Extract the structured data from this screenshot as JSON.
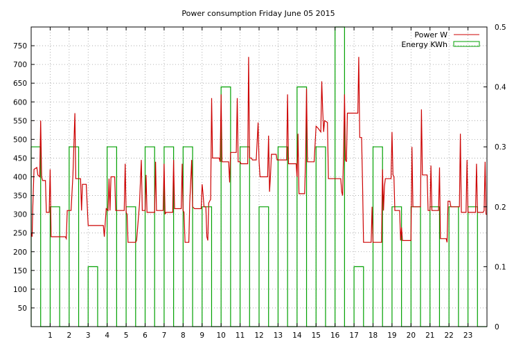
{
  "chart_data": {
    "type": "line",
    "title": "Power consumption Friday June 05 2015",
    "xlabel": "",
    "ylabel": "",
    "x_ticks": [
      "1",
      "2",
      "3",
      "4",
      "5",
      "6",
      "7",
      "8",
      "9",
      "10",
      "11",
      "12",
      "13",
      "14",
      "15",
      "16",
      "17",
      "18",
      "19",
      "20",
      "21",
      "22",
      "23"
    ],
    "xlim": [
      0,
      24
    ],
    "ylim": [
      0,
      800
    ],
    "y_ticks": [
      "50",
      "100",
      "150",
      "200",
      "250",
      "300",
      "350",
      "400",
      "450",
      "500",
      "550",
      "600",
      "650",
      "700",
      "750"
    ],
    "y2lim": [
      0,
      0.5
    ],
    "y2_ticks": [
      "0",
      "0.1",
      "0.2",
      "0.3",
      "0.4",
      "0.5"
    ],
    "grid": true,
    "legend_position": "top-right",
    "colors": {
      "power": "#cc0000",
      "energy": "#00a000"
    },
    "series": [
      {
        "name": "Power W",
        "axis": "left",
        "style": "line",
        "points": [
          [
            0.0,
            250
          ],
          [
            0.05,
            240
          ],
          [
            0.08,
            310
          ],
          [
            0.15,
            420
          ],
          [
            0.3,
            425
          ],
          [
            0.35,
            405
          ],
          [
            0.45,
            400
          ],
          [
            0.5,
            550
          ],
          [
            0.55,
            400
          ],
          [
            0.6,
            390
          ],
          [
            0.75,
            390
          ],
          [
            0.8,
            305
          ],
          [
            0.95,
            305
          ],
          [
            1.0,
            420
          ],
          [
            1.05,
            240
          ],
          [
            1.8,
            240
          ],
          [
            1.85,
            235
          ],
          [
            1.9,
            310
          ],
          [
            2.1,
            310
          ],
          [
            2.2,
            405
          ],
          [
            2.3,
            570
          ],
          [
            2.35,
            395
          ],
          [
            2.6,
            395
          ],
          [
            2.65,
            310
          ],
          [
            2.7,
            380
          ],
          [
            2.9,
            380
          ],
          [
            3.0,
            270
          ],
          [
            3.8,
            270
          ],
          [
            3.85,
            240
          ],
          [
            3.95,
            315
          ],
          [
            4.05,
            310
          ],
          [
            4.1,
            395
          ],
          [
            4.15,
            310
          ],
          [
            4.2,
            400
          ],
          [
            4.4,
            400
          ],
          [
            4.45,
            310
          ],
          [
            4.9,
            310
          ],
          [
            4.95,
            435
          ],
          [
            5.0,
            305
          ],
          [
            5.05,
            300
          ],
          [
            5.1,
            225
          ],
          [
            5.5,
            225
          ],
          [
            5.55,
            230
          ],
          [
            5.7,
            325
          ],
          [
            5.8,
            445
          ],
          [
            5.85,
            310
          ],
          [
            6.0,
            310
          ],
          [
            6.05,
            405
          ],
          [
            6.1,
            305
          ],
          [
            6.5,
            305
          ],
          [
            6.55,
            440
          ],
          [
            6.6,
            310
          ],
          [
            6.95,
            310
          ],
          [
            7.0,
            435
          ],
          [
            7.05,
            300
          ],
          [
            7.1,
            305
          ],
          [
            7.45,
            305
          ],
          [
            7.5,
            445
          ],
          [
            7.55,
            315
          ],
          [
            7.9,
            315
          ],
          [
            7.95,
            435
          ],
          [
            8.0,
            310
          ],
          [
            8.05,
            305
          ],
          [
            8.1,
            225
          ],
          [
            8.3,
            225
          ],
          [
            8.35,
            330
          ],
          [
            8.45,
            445
          ],
          [
            8.5,
            320
          ],
          [
            8.6,
            315
          ],
          [
            8.95,
            315
          ],
          [
            9.0,
            380
          ],
          [
            9.05,
            355
          ],
          [
            9.1,
            320
          ],
          [
            9.2,
            320
          ],
          [
            9.25,
            240
          ],
          [
            9.3,
            230
          ],
          [
            9.35,
            330
          ],
          [
            9.45,
            340
          ],
          [
            9.5,
            610
          ],
          [
            9.55,
            450
          ],
          [
            9.9,
            450
          ],
          [
            9.95,
            440
          ],
          [
            10.0,
            620
          ],
          [
            10.05,
            440
          ],
          [
            10.4,
            440
          ],
          [
            10.45,
            385
          ],
          [
            10.5,
            465
          ],
          [
            10.8,
            465
          ],
          [
            10.85,
            610
          ],
          [
            10.9,
            440
          ],
          [
            11.0,
            440
          ],
          [
            11.05,
            435
          ],
          [
            11.4,
            435
          ],
          [
            11.45,
            720
          ],
          [
            11.5,
            450
          ],
          [
            11.6,
            450
          ],
          [
            11.65,
            445
          ],
          [
            11.85,
            445
          ],
          [
            11.95,
            545
          ],
          [
            12.0,
            440
          ],
          [
            12.05,
            400
          ],
          [
            12.45,
            400
          ],
          [
            12.5,
            510
          ],
          [
            12.55,
            360
          ],
          [
            12.6,
            400
          ],
          [
            12.65,
            460
          ],
          [
            12.9,
            460
          ],
          [
            12.95,
            445
          ],
          [
            13.45,
            445
          ],
          [
            13.5,
            620
          ],
          [
            13.55,
            435
          ],
          [
            13.95,
            435
          ],
          [
            14.0,
            400
          ],
          [
            14.05,
            515
          ],
          [
            14.1,
            355
          ],
          [
            14.4,
            355
          ],
          [
            14.45,
            455
          ],
          [
            14.5,
            635
          ],
          [
            14.55,
            440
          ],
          [
            14.9,
            440
          ],
          [
            15.0,
            535
          ],
          [
            15.1,
            530
          ],
          [
            15.25,
            520
          ],
          [
            15.3,
            655
          ],
          [
            15.35,
            580
          ],
          [
            15.4,
            520
          ],
          [
            15.45,
            550
          ],
          [
            15.6,
            545
          ],
          [
            15.65,
            395
          ],
          [
            16.3,
            395
          ],
          [
            16.35,
            360
          ],
          [
            16.4,
            350
          ],
          [
            16.45,
            465
          ],
          [
            16.5,
            620
          ],
          [
            16.55,
            445
          ],
          [
            16.6,
            440
          ],
          [
            16.65,
            570
          ],
          [
            17.2,
            570
          ],
          [
            17.25,
            720
          ],
          [
            17.3,
            505
          ],
          [
            17.4,
            505
          ],
          [
            17.45,
            380
          ],
          [
            17.5,
            225
          ],
          [
            17.9,
            225
          ],
          [
            17.95,
            320
          ],
          [
            18.0,
            225
          ],
          [
            18.45,
            225
          ],
          [
            18.5,
            420
          ],
          [
            18.55,
            310
          ],
          [
            18.6,
            375
          ],
          [
            18.65,
            395
          ],
          [
            18.95,
            395
          ],
          [
            19.0,
            520
          ],
          [
            19.05,
            405
          ],
          [
            19.1,
            400
          ],
          [
            19.15,
            310
          ],
          [
            19.4,
            310
          ],
          [
            19.45,
            230
          ],
          [
            19.5,
            265
          ],
          [
            19.55,
            230
          ],
          [
            20.0,
            230
          ],
          [
            20.05,
            480
          ],
          [
            20.1,
            320
          ],
          [
            20.5,
            320
          ],
          [
            20.55,
            580
          ],
          [
            20.6,
            405
          ],
          [
            20.85,
            405
          ],
          [
            20.9,
            310
          ],
          [
            21.0,
            310
          ],
          [
            21.05,
            430
          ],
          [
            21.1,
            310
          ],
          [
            21.45,
            310
          ],
          [
            21.5,
            425
          ],
          [
            21.55,
            235
          ],
          [
            21.85,
            235
          ],
          [
            21.9,
            225
          ],
          [
            21.95,
            335
          ],
          [
            22.05,
            335
          ],
          [
            22.1,
            320
          ],
          [
            22.3,
            320
          ],
          [
            22.35,
            320
          ],
          [
            22.55,
            320
          ],
          [
            22.6,
            515
          ],
          [
            22.65,
            305
          ],
          [
            22.9,
            305
          ],
          [
            22.95,
            445
          ],
          [
            23.0,
            305
          ],
          [
            23.4,
            305
          ],
          [
            23.45,
            435
          ],
          [
            23.5,
            305
          ],
          [
            23.8,
            305
          ],
          [
            23.85,
            310
          ],
          [
            23.9,
            440
          ],
          [
            23.95,
            300
          ],
          [
            24.0,
            300
          ]
        ]
      },
      {
        "name": "Energy KWh",
        "axis": "right",
        "style": "step",
        "points": [
          [
            0.0,
            0.3
          ],
          [
            0.5,
            0.0
          ],
          [
            1.0,
            0.2
          ],
          [
            1.5,
            0.0
          ],
          [
            2.0,
            0.3
          ],
          [
            2.5,
            0.0
          ],
          [
            3.0,
            0.1
          ],
          [
            3.5,
            0.0
          ],
          [
            4.0,
            0.3
          ],
          [
            4.5,
            0.0
          ],
          [
            5.0,
            0.2
          ],
          [
            5.5,
            0.0
          ],
          [
            6.0,
            0.3
          ],
          [
            6.5,
            0.0
          ],
          [
            7.0,
            0.3
          ],
          [
            7.5,
            0.0
          ],
          [
            8.0,
            0.3
          ],
          [
            8.5,
            0.0
          ],
          [
            9.0,
            0.2
          ],
          [
            9.5,
            0.0
          ],
          [
            10.0,
            0.4
          ],
          [
            10.5,
            0.0
          ],
          [
            11.0,
            0.3
          ],
          [
            11.5,
            0.0
          ],
          [
            12.0,
            0.2
          ],
          [
            12.5,
            0.0
          ],
          [
            13.0,
            0.3
          ],
          [
            13.5,
            0.0
          ],
          [
            14.0,
            0.4
          ],
          [
            14.5,
            0.0
          ],
          [
            15.0,
            0.3
          ],
          [
            15.5,
            0.0
          ],
          [
            16.0,
            0.5
          ],
          [
            16.5,
            0.0
          ],
          [
            17.0,
            0.1
          ],
          [
            17.5,
            0.0
          ],
          [
            18.0,
            0.3
          ],
          [
            18.5,
            0.0
          ],
          [
            19.0,
            0.2
          ],
          [
            19.5,
            0.0
          ],
          [
            20.0,
            0.2
          ],
          [
            20.5,
            0.0
          ],
          [
            21.0,
            0.2
          ],
          [
            21.5,
            0.0
          ],
          [
            22.0,
            0.2
          ],
          [
            22.5,
            0.0
          ],
          [
            23.0,
            0.2
          ],
          [
            23.5,
            0.0
          ]
        ]
      }
    ]
  }
}
